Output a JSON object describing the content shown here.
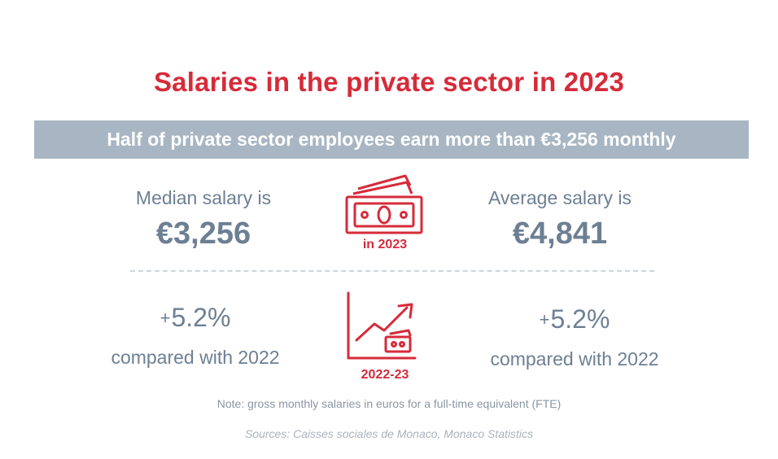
{
  "title": "Salaries in the private sector in 2023",
  "banner": "Half of private sector employees earn more than €3,256 monthly",
  "median": {
    "label": "Median salary is",
    "value": "€3,256",
    "change_sign": "+",
    "change_value": "5.2%",
    "change_label": "compared with 2022"
  },
  "average": {
    "label": "Average salary is",
    "value": "€4,841",
    "change_sign": "+",
    "change_value": "5.2%",
    "change_label": "compared with 2022"
  },
  "icons": {
    "money": {
      "name": "banknotes-icon",
      "caption": "in 2023"
    },
    "trend": {
      "name": "trend-chart-icon",
      "caption": "2022-23"
    }
  },
  "note": "Note: gross monthly salaries in euros for a full-time equivalent (FTE)",
  "source": "Sources: Caisses sociales de Monaco, Monaco Statistics",
  "colors": {
    "accent": "#d62b3a",
    "text": "#6d7f93",
    "banner": "#a8b6c3"
  }
}
